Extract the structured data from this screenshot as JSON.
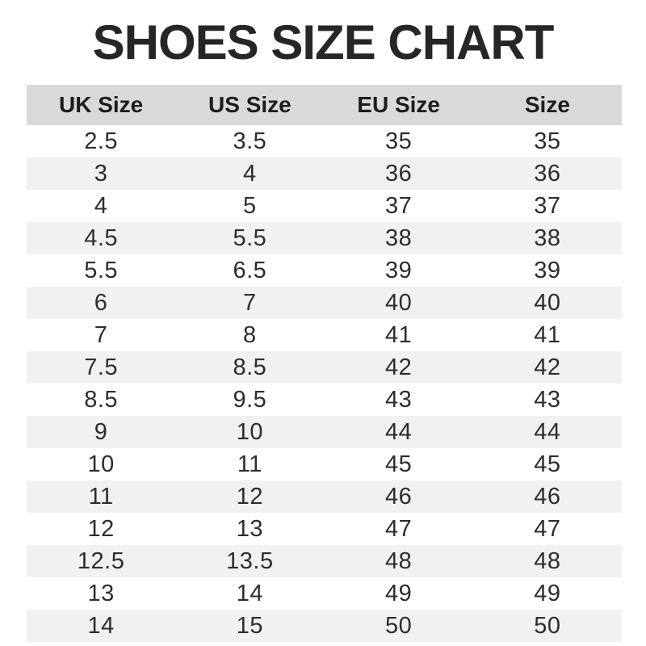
{
  "title": "SHOES SIZE CHART",
  "colors": {
    "header_bg": "#d9d9d9",
    "stripe_bg": "#f1f1f1",
    "title_text": "#262626",
    "cell_text": "#2d2d2d"
  },
  "chart_data": {
    "type": "table",
    "title": "SHOES SIZE CHART",
    "columns": [
      "UK Size",
      "US Size",
      "EU Size",
      "Size"
    ],
    "rows": [
      [
        "2.5",
        "3.5",
        "35",
        "35"
      ],
      [
        "3",
        "4",
        "36",
        "36"
      ],
      [
        "4",
        "5",
        "37",
        "37"
      ],
      [
        "4.5",
        "5.5",
        "38",
        "38"
      ],
      [
        "5.5",
        "6.5",
        "39",
        "39"
      ],
      [
        "6",
        "7",
        "40",
        "40"
      ],
      [
        "7",
        "8",
        "41",
        "41"
      ],
      [
        "7.5",
        "8.5",
        "42",
        "42"
      ],
      [
        "8.5",
        "9.5",
        "43",
        "43"
      ],
      [
        "9",
        "10",
        "44",
        "44"
      ],
      [
        "10",
        "11",
        "45",
        "45"
      ],
      [
        "11",
        "12",
        "46",
        "46"
      ],
      [
        "12",
        "13",
        "47",
        "47"
      ],
      [
        "12.5",
        "13.5",
        "48",
        "48"
      ],
      [
        "13",
        "14",
        "49",
        "49"
      ],
      [
        "14",
        "15",
        "50",
        "50"
      ]
    ],
    "layout": {
      "zebra_striping": true,
      "first_data_row_background": "white",
      "header_background": "gray"
    }
  }
}
